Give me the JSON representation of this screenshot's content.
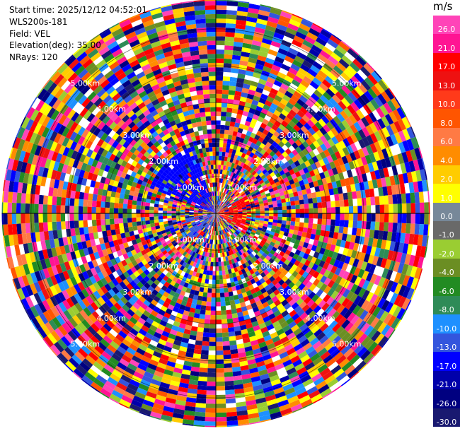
{
  "info": {
    "start_time": "Start time: 2025/12/12 04:52:01",
    "instrument": "WLS200s-181",
    "field": "Field: VEL",
    "elevation": "Elevation(deg): 35.00",
    "nrays": "NRays: 120"
  },
  "colorbar": {
    "unit": "m/s",
    "ticks": [
      "26.0",
      "21.0",
      "17.0",
      "13.0",
      "10.0",
      "8.0",
      "6.0",
      "4.0",
      "2.0",
      "1.0",
      "0.0",
      "-1.0",
      "-2.0",
      "-4.0",
      "-6.0",
      "-8.0",
      "-10.0",
      "-13.0",
      "-17.0",
      "-21.0",
      "-26.0",
      "-30.0"
    ],
    "colors": [
      "#ff44b8",
      "#ff1493",
      "#ff0000",
      "#ee1111",
      "#ff3a1a",
      "#ff5500",
      "#ff7a44",
      "#ff8c00",
      "#ffcc00",
      "#ffff00",
      "#778899",
      "#696969",
      "#9acd32",
      "#6b8e23",
      "#228b22",
      "#2e8b57",
      "#1e90ff",
      "#3355dd",
      "#0000ff",
      "#0000aa",
      "#000080",
      "#191970"
    ]
  },
  "chart_data": {
    "type": "ppi",
    "field": "VEL",
    "units": "m/s",
    "elevation_deg": 35.0,
    "nrays": 120,
    "range_rings_km": [
      1.0,
      2.0,
      3.0,
      4.0,
      5.0
    ],
    "ring_label_suffix": "km",
    "max_range_km": 5.8,
    "colorbar_range": [
      -30.0,
      26.0
    ],
    "note": "Noisy velocity field; near-center cluster of negative (blue) velocities toward NW and positive (red) toward E."
  }
}
